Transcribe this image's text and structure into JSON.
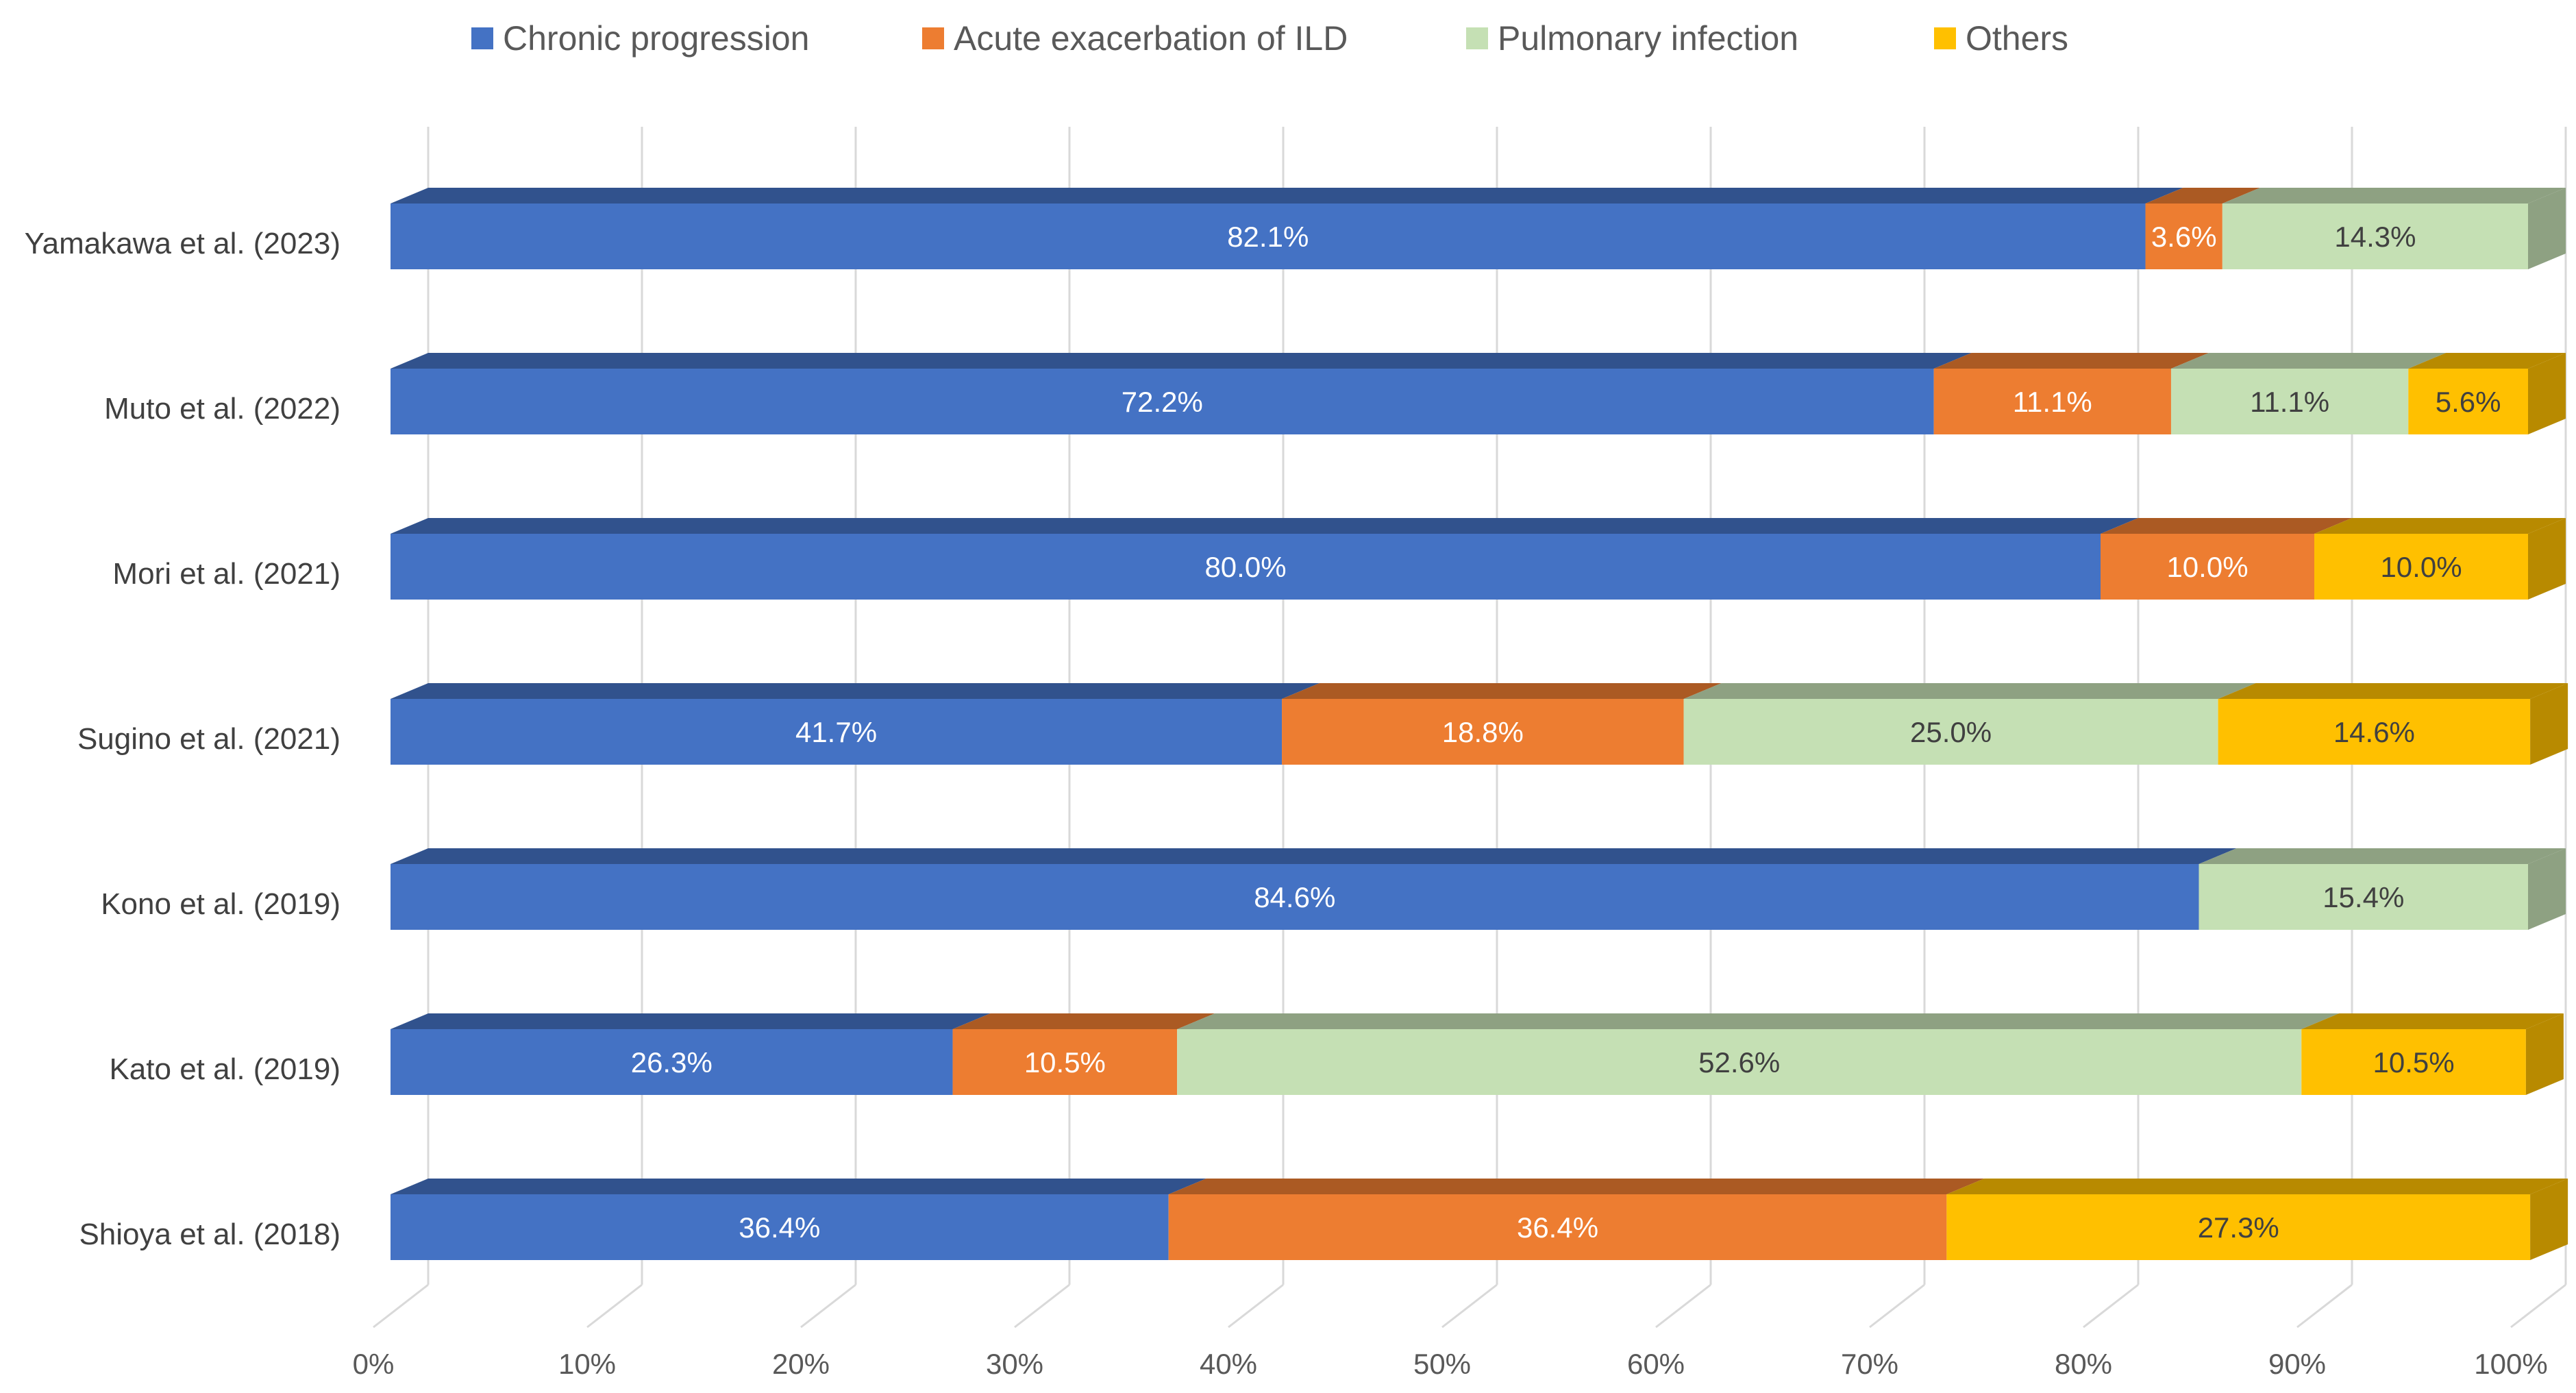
{
  "chart_data": {
    "type": "bar",
    "orientation": "horizontal",
    "stacked": true,
    "percent_stacked": true,
    "title": "",
    "xlabel": "",
    "ylabel": "",
    "xlim": [
      0,
      100
    ],
    "x_ticks": [
      "0%",
      "10%",
      "20%",
      "30%",
      "40%",
      "50%",
      "60%",
      "70%",
      "80%",
      "90%",
      "100%"
    ],
    "grid": true,
    "legend_position": "top",
    "categories": [
      "Yamakawa et al. (2023)",
      "Muto et al. (2022)",
      "Mori et al. (2021)",
      "Sugino et al. (2021)",
      "Kono et al. (2019)",
      "Kato et al. (2019)",
      "Shioya et al. (2018)"
    ],
    "series": [
      {
        "name": "Chronic progression",
        "color": "#4472C4",
        "label_color": "#ffffff",
        "values": [
          82.1,
          72.2,
          80.0,
          41.7,
          84.6,
          26.3,
          36.4
        ],
        "labels": [
          "82.1%",
          "72.2%",
          "80.0%",
          "41.7%",
          "84.6%",
          "26.3%",
          "36.4%"
        ]
      },
      {
        "name": "Acute exacerbation of ILD",
        "color": "#ED7D31",
        "label_color": "#ffffff",
        "values": [
          3.6,
          11.1,
          10.0,
          18.8,
          0,
          10.5,
          36.4
        ],
        "labels": [
          "3.6%",
          "11.1%",
          "10.0%",
          "18.8%",
          "",
          "10.5%",
          "36.4%"
        ]
      },
      {
        "name": "Pulmonary infection",
        "color": "#C5E0B4",
        "label_color": "#404040",
        "values": [
          14.3,
          11.1,
          0,
          25.0,
          15.4,
          52.6,
          0
        ],
        "labels": [
          "14.3%",
          "11.1%",
          "",
          "25.0%",
          "15.4%",
          "52.6%",
          ""
        ]
      },
      {
        "name": "Others",
        "color": "#FFC000",
        "label_color": "#404040",
        "values": [
          0,
          5.6,
          10.0,
          14.6,
          0,
          10.5,
          27.3
        ],
        "labels": [
          "",
          "5.6%",
          "10.0%",
          "14.6%",
          "",
          "10.5%",
          "27.3%"
        ]
      }
    ]
  }
}
